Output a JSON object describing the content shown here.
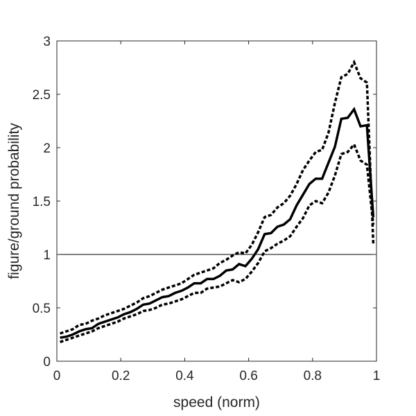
{
  "chart_data": {
    "type": "line",
    "xlabel": "speed (norm)",
    "ylabel": "figure/ground probability",
    "xlim": [
      0,
      1
    ],
    "ylim": [
      0,
      3
    ],
    "xticks": [
      "0",
      "0.2",
      "0.4",
      "0.6",
      "0.8",
      "1"
    ],
    "yticks": [
      "0",
      "0.5",
      "1",
      "1.5",
      "2",
      "2.5",
      "3"
    ],
    "grid": false,
    "legend": "none",
    "reference_line": {
      "y": 1
    },
    "x": [
      0.01,
      0.03,
      0.05,
      0.07,
      0.09,
      0.11,
      0.13,
      0.15,
      0.17,
      0.19,
      0.21,
      0.23,
      0.25,
      0.27,
      0.29,
      0.31,
      0.33,
      0.35,
      0.37,
      0.39,
      0.41,
      0.43,
      0.45,
      0.47,
      0.49,
      0.51,
      0.53,
      0.55,
      0.57,
      0.59,
      0.61,
      0.63,
      0.65,
      0.67,
      0.69,
      0.71,
      0.73,
      0.75,
      0.77,
      0.79,
      0.81,
      0.83,
      0.85,
      0.87,
      0.89,
      0.91,
      0.93,
      0.95,
      0.97,
      0.99
    ],
    "series": [
      {
        "style": "solid",
        "color": "#000000",
        "values": [
          0.22,
          0.23,
          0.25,
          0.28,
          0.3,
          0.31,
          0.35,
          0.37,
          0.39,
          0.41,
          0.44,
          0.46,
          0.49,
          0.53,
          0.54,
          0.57,
          0.6,
          0.61,
          0.64,
          0.66,
          0.69,
          0.73,
          0.73,
          0.77,
          0.77,
          0.8,
          0.85,
          0.86,
          0.91,
          0.89,
          0.96,
          1.05,
          1.19,
          1.2,
          1.26,
          1.28,
          1.33,
          1.46,
          1.56,
          1.66,
          1.71,
          1.71,
          1.86,
          2.01,
          2.27,
          2.28,
          2.36,
          2.2,
          2.21,
          1.35
        ]
      },
      {
        "style": "dotted",
        "color": "#000000",
        "values": [
          0.26,
          0.28,
          0.3,
          0.34,
          0.35,
          0.38,
          0.4,
          0.43,
          0.45,
          0.47,
          0.49,
          0.52,
          0.55,
          0.59,
          0.61,
          0.64,
          0.67,
          0.69,
          0.71,
          0.73,
          0.77,
          0.81,
          0.83,
          0.85,
          0.87,
          0.92,
          0.95,
          0.99,
          1.02,
          1.01,
          1.09,
          1.21,
          1.35,
          1.37,
          1.44,
          1.48,
          1.55,
          1.66,
          1.79,
          1.88,
          1.96,
          1.98,
          2.14,
          2.42,
          2.66,
          2.69,
          2.8,
          2.65,
          2.61,
          1.1
        ]
      },
      {
        "style": "dotted",
        "color": "#000000",
        "values": [
          0.18,
          0.2,
          0.22,
          0.24,
          0.26,
          0.28,
          0.31,
          0.33,
          0.35,
          0.37,
          0.4,
          0.42,
          0.44,
          0.47,
          0.48,
          0.5,
          0.53,
          0.54,
          0.56,
          0.58,
          0.61,
          0.64,
          0.64,
          0.68,
          0.69,
          0.7,
          0.73,
          0.76,
          0.74,
          0.77,
          0.84,
          0.92,
          1.03,
          1.06,
          1.1,
          1.13,
          1.17,
          1.26,
          1.34,
          1.46,
          1.5,
          1.48,
          1.58,
          1.74,
          1.94,
          1.96,
          2.03,
          1.88,
          1.84,
          1.28
        ]
      }
    ]
  }
}
